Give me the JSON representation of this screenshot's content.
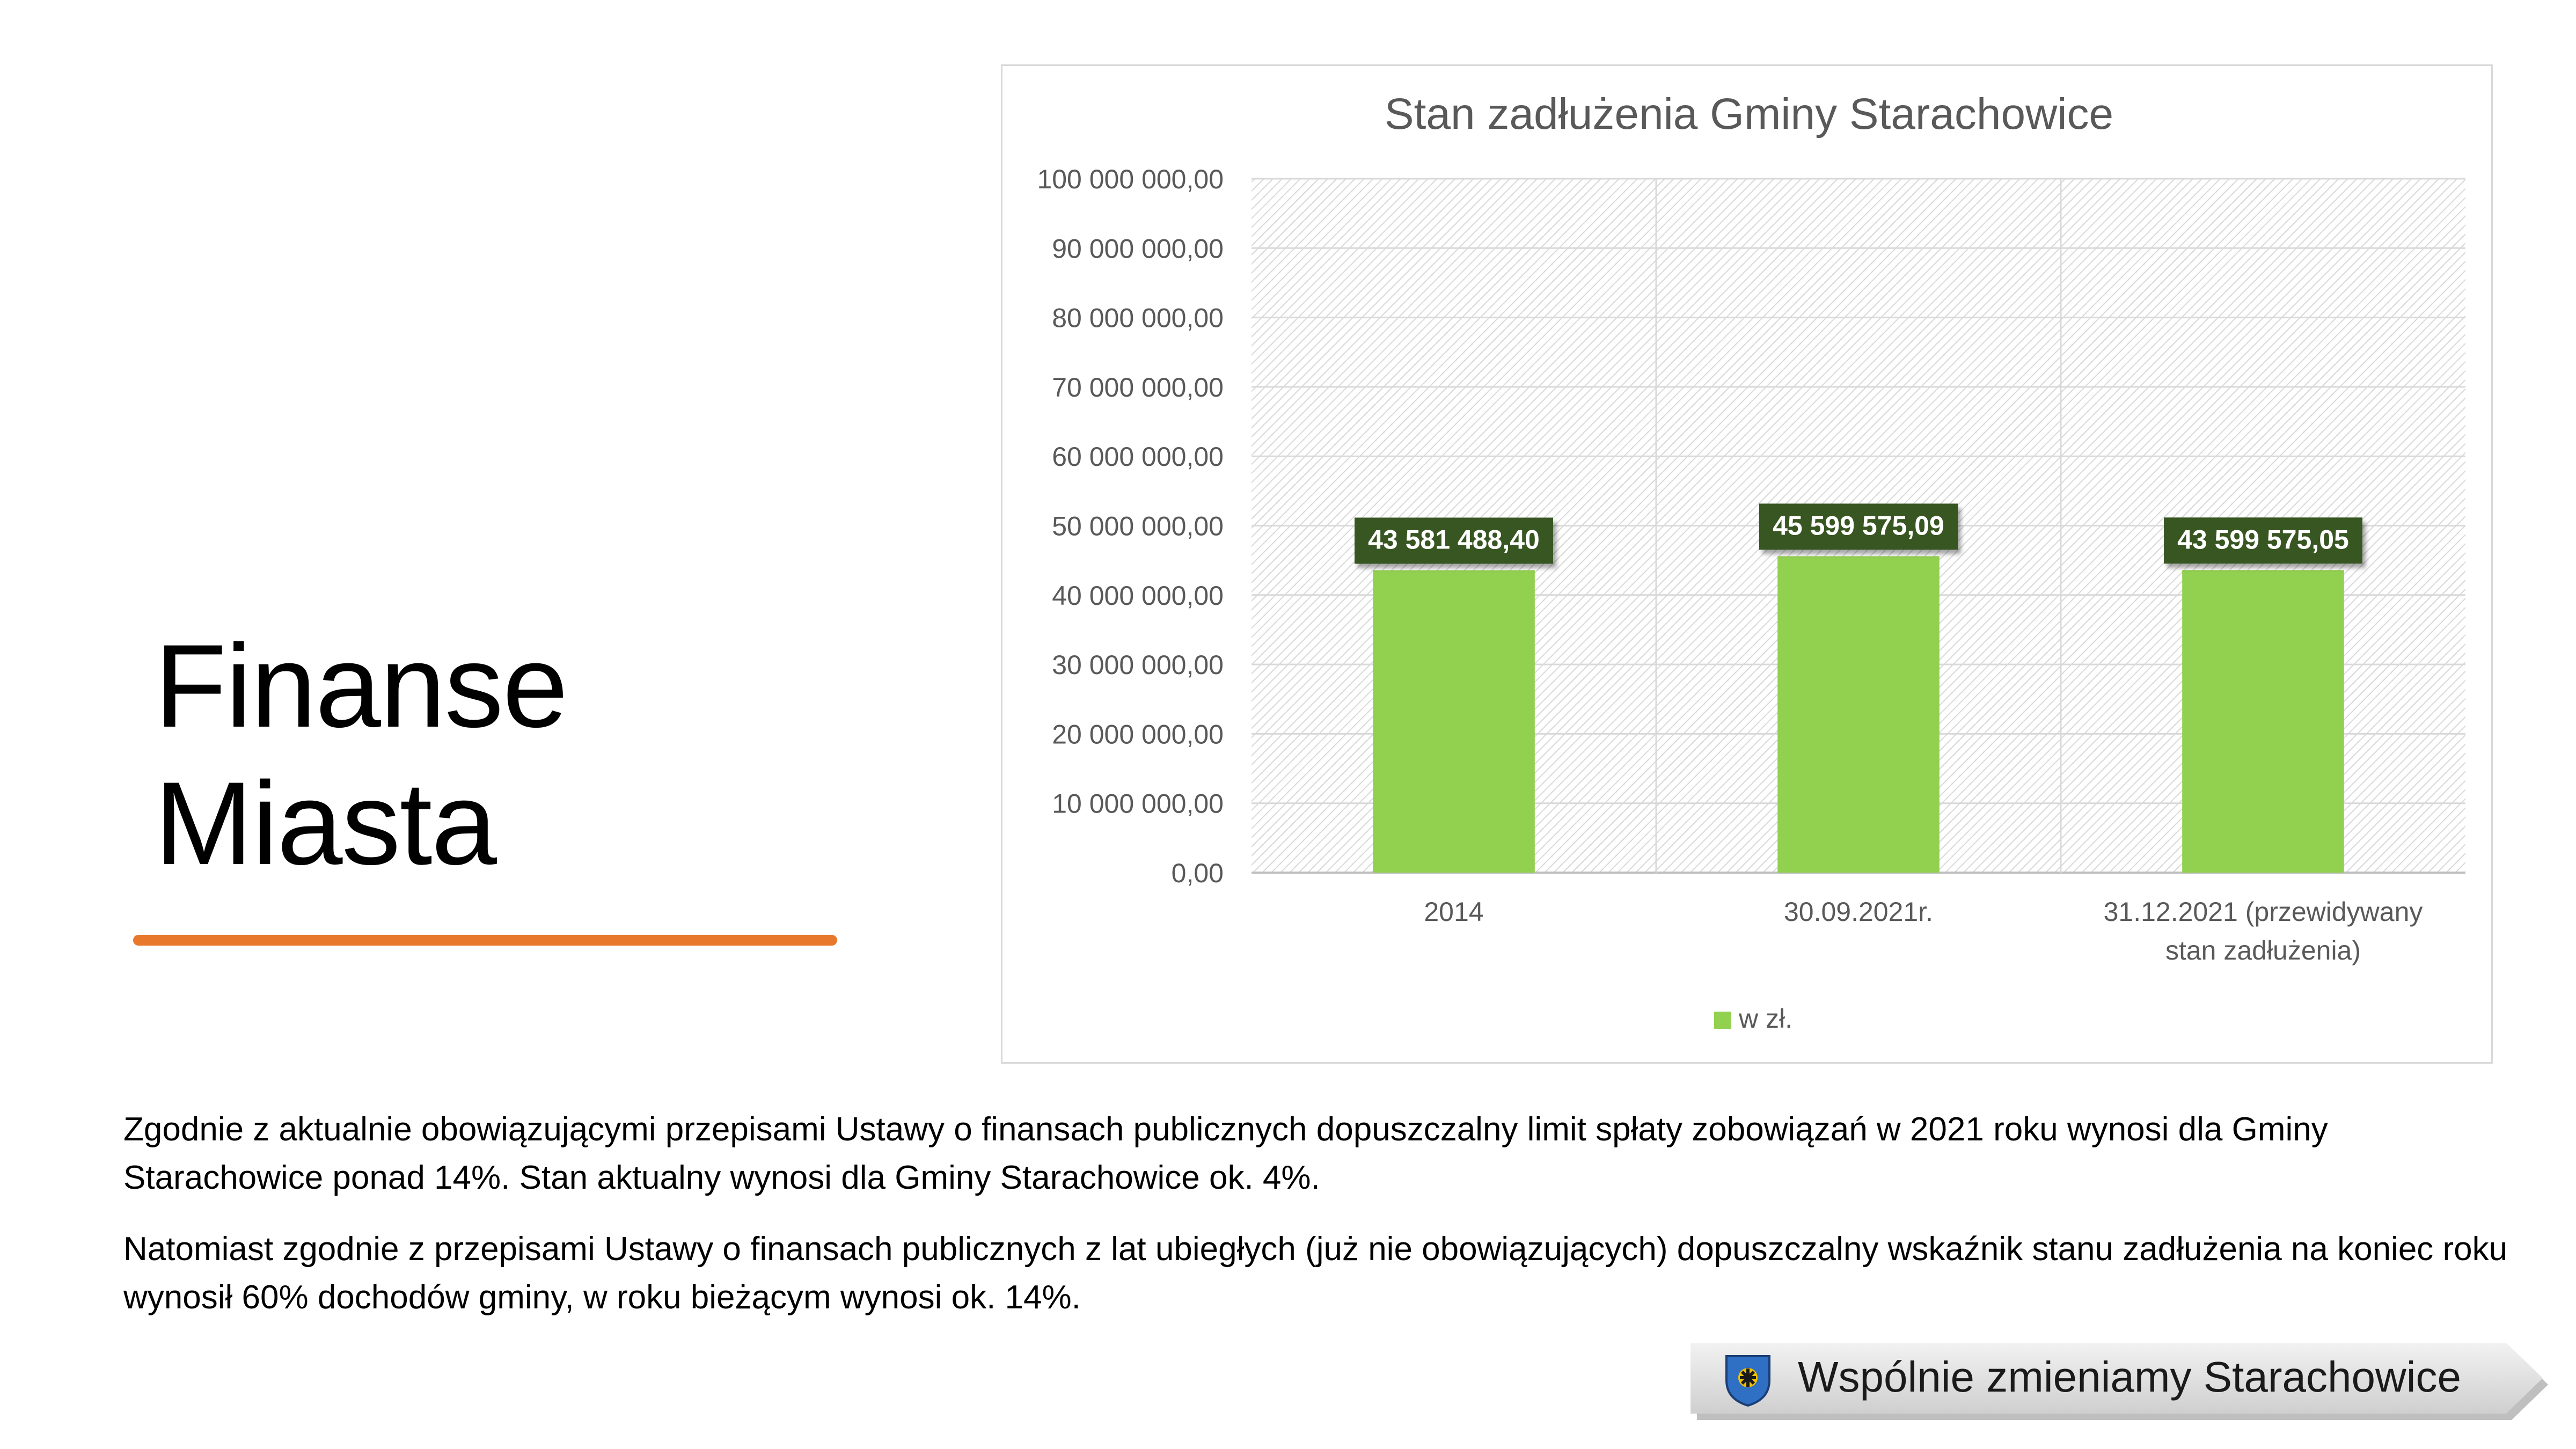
{
  "slide": {
    "title_line1": "Finanse",
    "title_line2": "Miasta",
    "accent_color": "#E8792C",
    "paragraph1": "Zgodnie z aktualnie obowiązującymi przepisami Ustawy o finansach publicznych dopuszczalny limit spłaty zobowiązań w 2021 roku wynosi dla Gminy Starachowice ponad 14%. Stan aktualny wynosi dla Gminy Starachowice ok. 4%.",
    "paragraph2": "Natomiast zgodnie z przepisami Ustawy o finansach publicznych z lat ubiegłych (już nie obowiązujących) dopuszczalny wskaźnik stanu zadłużenia na koniec roku wynosił 60% dochodów gminy, w roku bieżącym wynosi ok. 14%.",
    "footer_text": "Wspólnie zmieniamy Starachowice",
    "footer_logo_icon": "city-coat-of-arms-icon"
  },
  "chart_data": {
    "type": "bar",
    "title": "Stan zadłużenia Gminy Starachowice",
    "categories": [
      "2014",
      "30.09.2021r.",
      "31.12.2021 (przewidywany stan zadłużenia)"
    ],
    "category_label_lines": [
      [
        "2014"
      ],
      [
        "30.09.2021r."
      ],
      [
        "31.12.2021 (przewidywany",
        "stan zadłużenia)"
      ]
    ],
    "series": [
      {
        "name": "w zł.",
        "values": [
          43581488.4,
          45599575.09,
          43599575.05
        ],
        "data_labels": [
          "43 581 488,40",
          "45 599 575,09",
          "43 599 575,05"
        ],
        "color": "#92D050"
      }
    ],
    "ylim": [
      0,
      100000000
    ],
    "y_ticks": [
      0,
      10000000,
      20000000,
      30000000,
      40000000,
      50000000,
      60000000,
      70000000,
      80000000,
      90000000,
      100000000
    ],
    "y_tick_labels": [
      "0,00",
      "10 000 000,00",
      "20 000 000,00",
      "30 000 000,00",
      "40 000 000,00",
      "50 000 000,00",
      "60 000 000,00",
      "70 000 000,00",
      "80 000 000,00",
      "90 000 000,00",
      "100 000 000,00"
    ],
    "xlabel": "",
    "ylabel": "",
    "grid": true,
    "legend_position": "bottom",
    "data_label_bg": "#375623",
    "plot_fill": "hatched-light-gray"
  }
}
